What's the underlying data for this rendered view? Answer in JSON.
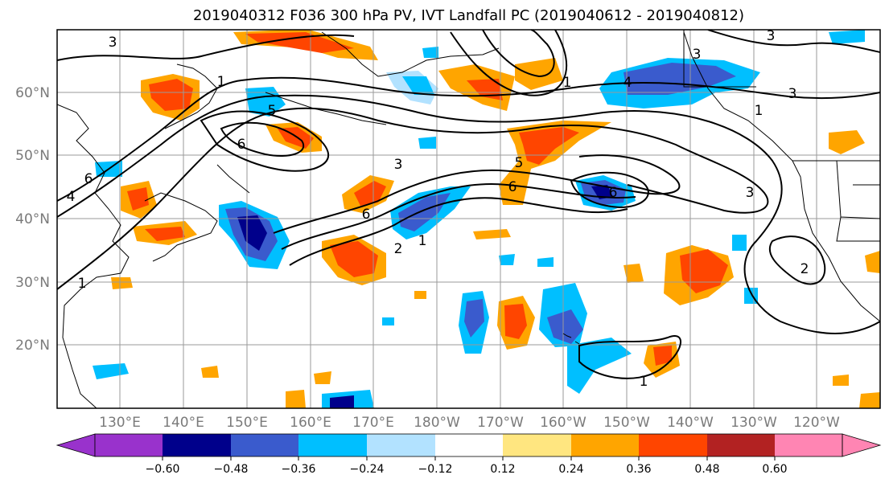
{
  "title": "2019040312 F036 300 hPa PV, IVT Landfall PC (2019040612 - 2019040812)",
  "lat_labels": [
    "60°N",
    "50°N",
    "40°N",
    "30°N",
    "20°N"
  ],
  "lon_labels": [
    "130°E",
    "140°E",
    "150°E",
    "160°E",
    "170°E",
    "180°W",
    "170°W",
    "160°W",
    "150°W",
    "140°W",
    "130°W",
    "120°W"
  ],
  "colorbar": {
    "colors": [
      "#9932cc",
      "#00008b",
      "#3a5bcd",
      "#00bfff",
      "#b2e2ff",
      "#ffffff",
      "#ffe680",
      "#ffa500",
      "#ff4500",
      "#b22222",
      "#ff85b3"
    ],
    "tick_labels": [
      "−0.60",
      "−0.48",
      "−0.36",
      "−0.24",
      "−0.12",
      "0.12",
      "0.24",
      "0.36",
      "0.48",
      "0.60"
    ]
  },
  "contour_labels": [
    "3",
    "1",
    "5",
    "6",
    "4",
    "3",
    "6",
    "2",
    "1",
    "6",
    "5",
    "4",
    "3",
    "1",
    "3",
    "6",
    "1",
    "2",
    "3",
    "1",
    "6",
    "3",
    "1"
  ]
}
